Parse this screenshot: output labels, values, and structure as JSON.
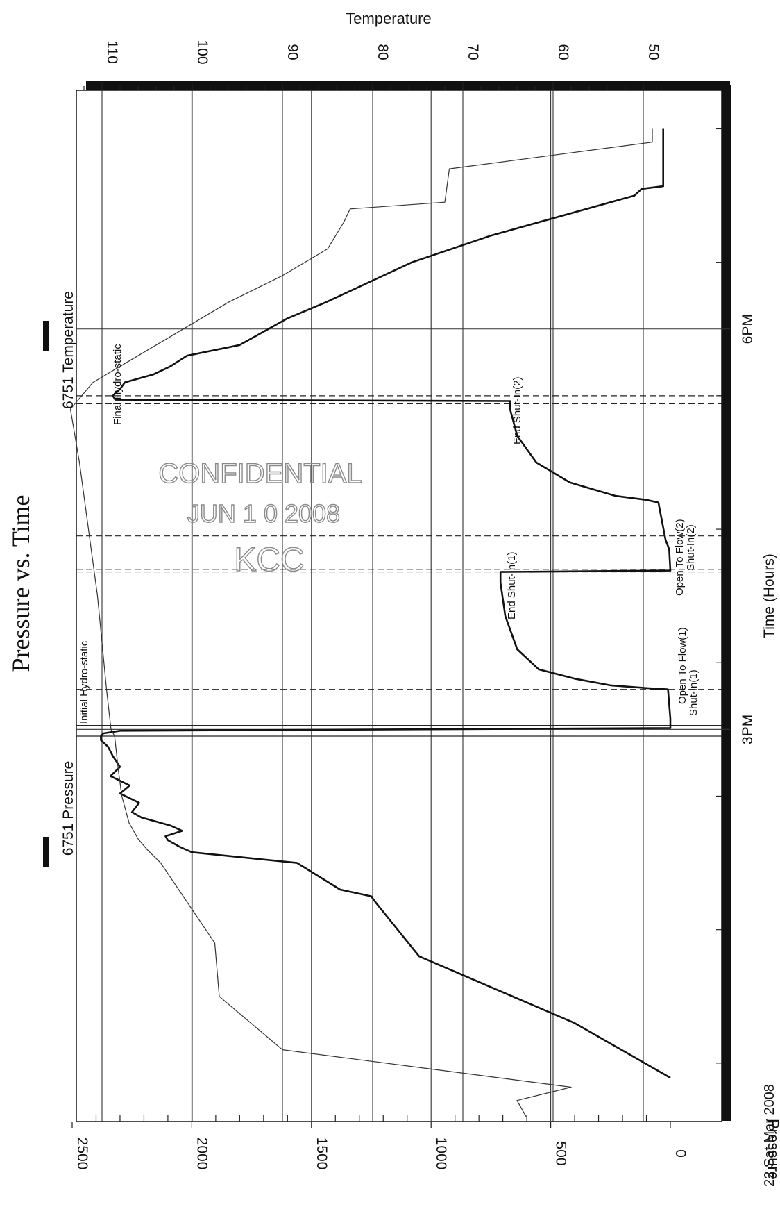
{
  "chart_data": {
    "type": "line",
    "title": "Pressure vs. Time",
    "xlabel": "Time (Hours)",
    "ylabel": "Pressure",
    "y2label": "Temperature",
    "date_label": "22 Sat Mar 2008",
    "x_ticks": [
      {
        "label": "3PM",
        "value": 15.0
      },
      {
        "label": "6PM",
        "value": 18.0
      }
    ],
    "xlim": [
      12.0,
      19.5
    ],
    "ylim": [
      0,
      2500
    ],
    "y_ticks": [
      0,
      500,
      1000,
      1500,
      2000,
      2500
    ],
    "y2lim": [
      47,
      117
    ],
    "y2_ticks": [
      50,
      60,
      70,
      80,
      90,
      100,
      110
    ],
    "grid": true,
    "legend": [
      {
        "name": "6751 Pressure",
        "color": "#111111"
      },
      {
        "name": "6751 Temperature",
        "color": "#444444"
      }
    ],
    "series": [
      {
        "name": "6751 Pressure",
        "color": "#111111",
        "x": [
          12.39,
          12.8,
          13.3,
          13.7,
          13.75,
          13.8,
          14.0,
          14.08,
          14.12,
          14.17,
          14.2,
          14.24,
          14.28,
          14.34,
          14.38,
          14.45,
          14.52,
          14.58,
          14.65,
          14.72,
          14.8,
          14.87,
          14.92,
          14.95,
          14.97,
          14.99,
          15.01,
          15.03,
          15.05,
          15.08,
          15.3,
          15.31,
          15.33,
          15.38,
          15.45,
          15.6,
          15.85,
          16.1,
          16.18,
          16.19,
          16.35,
          16.42,
          16.7,
          16.72,
          16.75,
          16.85,
          17.0,
          17.2,
          17.4,
          17.46,
          17.47,
          17.5,
          17.55,
          17.6,
          17.66,
          17.72,
          17.8,
          17.88,
          17.95,
          18.08,
          18.2,
          18.35,
          18.5,
          18.7,
          19.0,
          19.05,
          19.07,
          19.1,
          19.2,
          19.35,
          19.5
        ],
        "y": [
          0,
          400,
          1050,
          1230,
          1250,
          1380,
          1560,
          2000,
          2050,
          2100,
          2110,
          2040,
          2090,
          2210,
          2250,
          2220,
          2300,
          2260,
          2340,
          2300,
          2330,
          2350,
          2380,
          2380,
          2370,
          2300,
          0,
          0,
          0,
          0,
          10,
          100,
          250,
          400,
          550,
          640,
          690,
          710,
          710,
          0,
          5,
          20,
          50,
          100,
          230,
          420,
          560,
          640,
          670,
          670,
          2320,
          2330,
          2300,
          2280,
          2160,
          2090,
          2020,
          1800,
          1730,
          1600,
          1440,
          1260,
          1080,
          750,
          150,
          120,
          30,
          30,
          30,
          30,
          30
        ]
      },
      {
        "name": "6751 Temperature",
        "color": "#444444",
        "x": [
          12.1,
          12.22,
          12.32,
          12.6,
          13.0,
          13.4,
          13.8,
          14.0,
          14.1,
          14.18,
          14.3,
          14.5,
          14.7,
          14.95,
          15.0,
          15.3,
          16.0,
          16.5,
          17.0,
          17.4,
          17.6,
          17.8,
          18.0,
          18.2,
          18.4,
          18.6,
          18.8,
          18.9,
          18.95,
          19.2,
          19.4,
          19.5
        ],
        "y": [
          63,
          64,
          58,
          90,
          97,
          97.5,
          101.5,
          103.5,
          105,
          106,
          107,
          107.8,
          108.2,
          108.6,
          109,
          109.5,
          110.5,
          111.5,
          112.5,
          113.5,
          111,
          106,
          101,
          96,
          90,
          85,
          83.2,
          82.5,
          72,
          71.5,
          49,
          49
        ]
      }
    ],
    "annotations": [
      {
        "label": "Initial Hydro-static",
        "x": 14.95
      },
      {
        "label": "Shut-In(1)",
        "x": 15.03
      },
      {
        "label": "Open To Flow(1)",
        "x": 15.3
      },
      {
        "label": "End Shut-In(1)",
        "x": 16.18
      },
      {
        "label": "Open To Flow(2)",
        "x": 16.2
      },
      {
        "label": "Shut-In(2)",
        "x": 16.45
      },
      {
        "label": "End Shut-In(2)",
        "x": 17.44
      },
      {
        "label": "Final Hydro-static",
        "x": 17.5
      }
    ]
  },
  "stamp": {
    "line1": "CONFIDENTIAL",
    "line2": "JUN 1 0 2008",
    "line3": "KCC"
  }
}
